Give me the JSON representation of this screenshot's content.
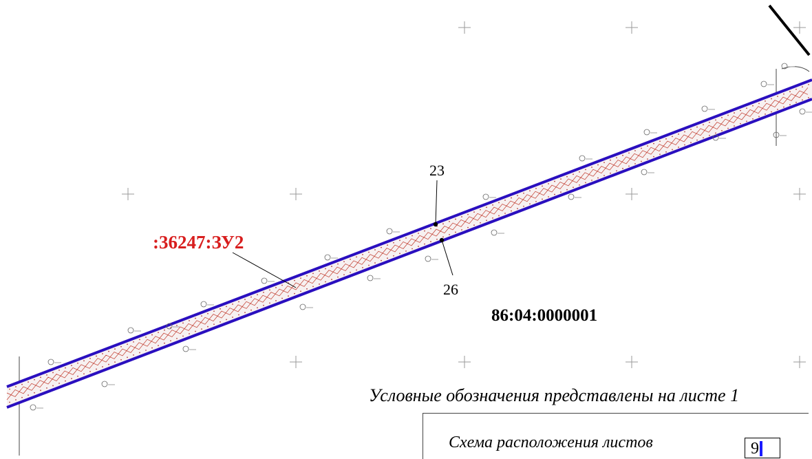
{
  "map": {
    "parcel_id": ":36247:ЗУ2",
    "quarter_number": "86:04:0000001",
    "points": [
      {
        "id": "point-23",
        "label": "23"
      },
      {
        "id": "point-26",
        "label": "26"
      }
    ],
    "colors": {
      "boundary": "#2a0fbf",
      "parcel_label": "#d81e1e",
      "centerline": "#c0392b",
      "grid_cross": "#9a9a9a"
    }
  },
  "legend": {
    "note": "Условные обозначения представлены на листе 1"
  },
  "sheet_layout": {
    "title": "Схема расположения листов",
    "current_sheet": "9"
  }
}
